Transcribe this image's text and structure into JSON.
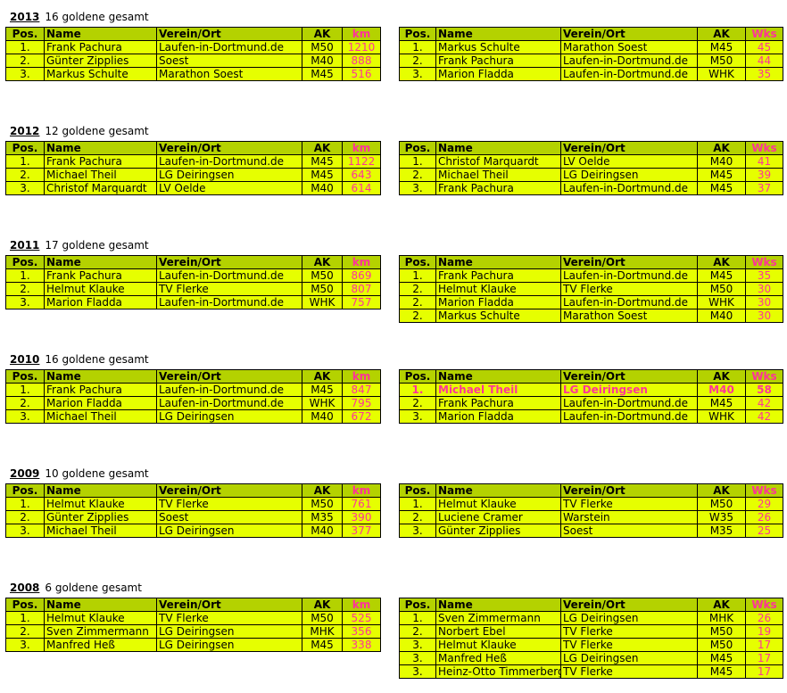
{
  "headers": {
    "pos": "Pos.",
    "name": "Name",
    "club": "Verein/Ort",
    "ak": "AK",
    "km": "km",
    "wks": "Wks"
  },
  "colors": {
    "header_bg": "#b4d200",
    "row_bg": "#e6ff00",
    "accent": "#ff3399"
  },
  "sections": [
    {
      "year": "2013",
      "summary": "16 goldene gesamt",
      "km": [
        [
          "1.",
          "Frank Pachura",
          "Laufen-in-Dortmund.de",
          "M50",
          "1210"
        ],
        [
          "2.",
          "Günter Zipplies",
          "Soest",
          "M40",
          "888"
        ],
        [
          "3.",
          "Markus Schulte",
          "Marathon Soest",
          "M45",
          "516"
        ]
      ],
      "wks": [
        [
          "1.",
          "Markus Schulte",
          "Marathon Soest",
          "M45",
          "45"
        ],
        [
          "2.",
          "Frank Pachura",
          "Laufen-in-Dortmund.de",
          "M50",
          "44"
        ],
        [
          "3.",
          "Marion Fladda",
          "Laufen-in-Dortmund.de",
          "WHK",
          "35"
        ]
      ]
    },
    {
      "year": "2012",
      "summary": "12 goldene gesamt",
      "km": [
        [
          "1.",
          "Frank Pachura",
          "Laufen-in-Dortmund.de",
          "M45",
          "1122"
        ],
        [
          "2.",
          "Michael Theil",
          "LG Deiringsen",
          "M45",
          "643"
        ],
        [
          "3.",
          "Christof Marquardt",
          "LV Oelde",
          "M40",
          "614"
        ]
      ],
      "wks": [
        [
          "1.",
          "Christof Marquardt",
          "LV Oelde",
          "M40",
          "41"
        ],
        [
          "2.",
          "Michael Theil",
          "LG Deiringsen",
          "M45",
          "39"
        ],
        [
          "3.",
          "Frank Pachura",
          "Laufen-in-Dortmund.de",
          "M45",
          "37"
        ]
      ]
    },
    {
      "year": "2011",
      "summary": "17 goldene gesamt",
      "km": [
        [
          "1.",
          "Frank Pachura",
          "Laufen-in-Dortmund.de",
          "M50",
          "869"
        ],
        [
          "2.",
          "Helmut Klauke",
          "TV Flerke",
          "M50",
          "807"
        ],
        [
          "3.",
          "Marion Fladda",
          "Laufen-in-Dortmund.de",
          "WHK",
          "757"
        ]
      ],
      "wks": [
        [
          "1.",
          "Frank Pachura",
          "Laufen-in-Dortmund.de",
          "M45",
          "35"
        ],
        [
          "2.",
          "Helmut Klauke",
          "TV Flerke",
          "M50",
          "30"
        ],
        [
          "2.",
          "Marion Fladda",
          "Laufen-in-Dortmund.de",
          "WHK",
          "30"
        ],
        [
          "2.",
          "Markus Schulte",
          "Marathon Soest",
          "M40",
          "30"
        ]
      ]
    },
    {
      "year": "2010",
      "summary": "16 goldene gesamt",
      "km": [
        [
          "1.",
          "Frank Pachura",
          "Laufen-in-Dortmund.de",
          "M45",
          "847"
        ],
        [
          "2.",
          "Marion Fladda",
          "Laufen-in-Dortmund.de",
          "WHK",
          "795"
        ],
        [
          "3.",
          "Michael Theil",
          "LG Deiringsen",
          "M40",
          "672"
        ]
      ],
      "wks": [
        [
          "1.",
          "Michael Theil",
          "LG Deiringsen",
          "M40",
          "58"
        ],
        [
          "2.",
          "Frank Pachura",
          "Laufen-in-Dortmund.de",
          "M45",
          "42"
        ],
        [
          "3.",
          "Marion Fladda",
          "Laufen-in-Dortmund.de",
          "WHK",
          "42"
        ]
      ],
      "wks_highlight_row": 0
    },
    {
      "year": "2009",
      "summary": "10 goldene gesamt",
      "km": [
        [
          "1.",
          "Helmut Klauke",
          "TV Flerke",
          "M50",
          "761"
        ],
        [
          "2.",
          "Günter Zipplies",
          "Soest",
          "M35",
          "390"
        ],
        [
          "3.",
          "Michael Theil",
          "LG Deiringsen",
          "M40",
          "377"
        ]
      ],
      "wks": [
        [
          "1.",
          "Helmut Klauke",
          "TV Flerke",
          "M50",
          "29"
        ],
        [
          "2.",
          "Luciene Cramer",
          "Warstein",
          "W35",
          "26"
        ],
        [
          "3.",
          "Günter Zipplies",
          "Soest",
          "M35",
          "25"
        ]
      ]
    },
    {
      "year": "2008",
      "summary": "6 goldene gesamt",
      "km": [
        [
          "1.",
          "Helmut Klauke",
          "TV Flerke",
          "M50",
          "525"
        ],
        [
          "2.",
          "Sven Zimmermann",
          "LG Deiringsen",
          "MHK",
          "356"
        ],
        [
          "3.",
          "Manfred Heß",
          "LG Deiringsen",
          "M45",
          "338"
        ]
      ],
      "wks": [
        [
          "1.",
          "Sven Zimmermann",
          "LG Deiringsen",
          "MHK",
          "26"
        ],
        [
          "2.",
          "Norbert Ebel",
          "TV Flerke",
          "M50",
          "19"
        ],
        [
          "3.",
          "Helmut Klauke",
          "TV Flerke",
          "M50",
          "17"
        ],
        [
          "3.",
          "Manfred Heß",
          "LG Deiringsen",
          "M45",
          "17"
        ],
        [
          "3.",
          "Heinz-Otto Timmerberg",
          "TV Flerke",
          "M45",
          "17"
        ]
      ]
    }
  ]
}
